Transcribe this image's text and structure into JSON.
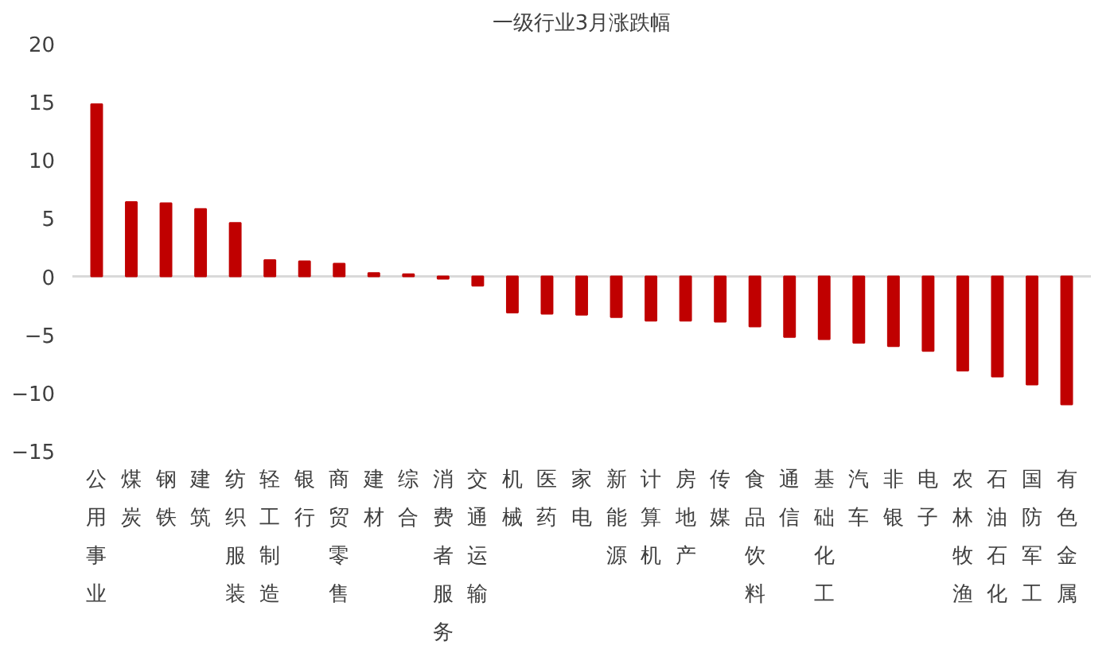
{
  "chart_data": {
    "type": "bar",
    "title": "一级行业3月涨跌幅",
    "categories": [
      "公用事业",
      "煤炭",
      "钢铁",
      "建筑",
      "纺织服装",
      "轻工制造",
      "银行",
      "商贸零售",
      "建材",
      "综合",
      "消费者服务",
      "交通运输",
      "机械",
      "医药",
      "家电",
      "新能源",
      "计算机",
      "房地产",
      "传媒",
      "食品饮料",
      "通信",
      "基础化工",
      "汽车",
      "非银",
      "电子",
      "农林牧渔",
      "石油石化",
      "国防军工",
      "有色金属"
    ],
    "values": [
      14.8,
      6.4,
      6.3,
      5.8,
      4.6,
      1.4,
      1.3,
      1.1,
      0.3,
      0.2,
      -0.2,
      -0.8,
      -3.1,
      -3.2,
      -3.3,
      -3.5,
      -3.8,
      -3.8,
      -3.9,
      -4.3,
      -5.2,
      -5.4,
      -5.7,
      -6.0,
      -6.4,
      -8.1,
      -8.6,
      -9.3,
      -11.0
    ],
    "color": "#c00000",
    "ylim": [
      -15,
      20
    ],
    "yticks": [
      -15,
      -10,
      -5,
      0,
      5,
      10,
      15,
      20
    ],
    "grid": false,
    "ref_lines": [
      {
        "axis": "y",
        "value": 0,
        "color": "#d9d9d9"
      }
    ]
  }
}
